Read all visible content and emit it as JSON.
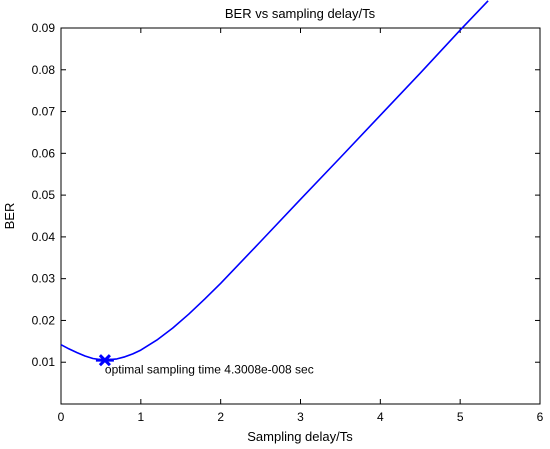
{
  "chart_data": {
    "type": "line",
    "title": "BER vs sampling delay/Ts",
    "xlabel": "Sampling delay/Ts",
    "ylabel": "BER",
    "xlim": [
      0,
      6
    ],
    "ylim": [
      0,
      0.09
    ],
    "xticks": [
      "0",
      "1",
      "2",
      "3",
      "4",
      "5",
      "6"
    ],
    "yticks": [
      "0.01",
      "0.02",
      "0.03",
      "0.04",
      "0.05",
      "0.06",
      "0.07",
      "0.08",
      "0.09"
    ],
    "grid": false,
    "series": [
      {
        "color": "#0000ff",
        "x": [
          0,
          0.1,
          0.2,
          0.3,
          0.4,
          0.5,
          0.55,
          0.6,
          0.7,
          0.8,
          0.9,
          1.0,
          1.2,
          1.4,
          1.6,
          1.8,
          2.0,
          2.5,
          3.0,
          3.5,
          4.0,
          4.5,
          5.0,
          5.35
        ],
        "y": [
          0.0142,
          0.0132,
          0.0123,
          0.0115,
          0.0109,
          0.0106,
          0.0105,
          0.0106,
          0.0108,
          0.0113,
          0.012,
          0.0129,
          0.0153,
          0.0182,
          0.0215,
          0.0251,
          0.0289,
          0.0389,
          0.049,
          0.059,
          0.0691,
          0.0792,
          0.0895,
          0.0965
        ]
      }
    ],
    "marker": {
      "x": 0.55,
      "y": 0.0105,
      "color": "#0000ff"
    },
    "annotation": {
      "text": "optimal sampling time 4.3008e-008 sec",
      "x": 0.55,
      "y": 0.0085
    }
  }
}
